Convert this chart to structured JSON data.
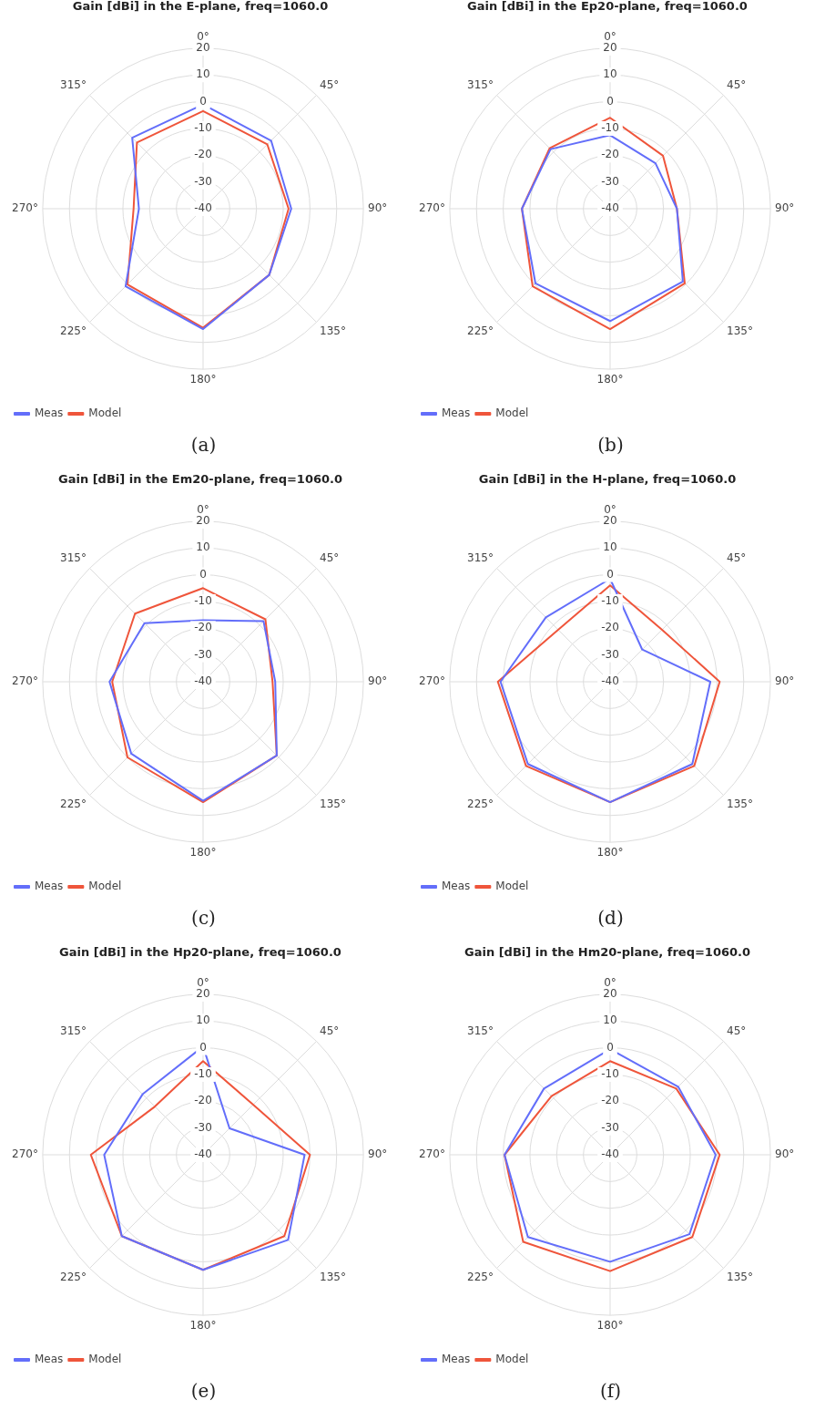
{
  "chart_data": [
    {
      "type": "radar",
      "title": "Gain [dBi] in the E-plane, freq=1060.0",
      "categories": [
        "0°",
        "45°",
        "90°",
        "135°",
        "180°",
        "225°",
        "270°",
        "315°"
      ],
      "series": [
        {
          "name": "Meas",
          "color": "#636efa",
          "values": [
            -1,
            -4,
            -7,
            -5,
            5,
            1,
            -16,
            -2.5
          ]
        },
        {
          "name": "Model",
          "color": "#ef553b",
          "values": [
            -3.5,
            -6,
            -8,
            -5,
            4.5,
            0,
            -14,
            -5
          ]
        }
      ],
      "ylim": [
        -40,
        20
      ],
      "yticks": [
        -40,
        -30,
        -20,
        -10,
        0,
        10,
        20
      ],
      "grid": true,
      "legend": "bottom left",
      "marker": "none",
      "line_style": "solid",
      "annotations": [
        "(a)"
      ]
    },
    {
      "type": "radar",
      "title": "Gain [dBi] in the Ep20-plane, freq=1060.0",
      "categories": [
        "0°",
        "45°",
        "90°",
        "135°",
        "180°",
        "225°",
        "270°",
        "315°"
      ],
      "series": [
        {
          "name": "Meas",
          "color": "#636efa",
          "values": [
            -12.5,
            -16,
            -15,
            -1.5,
            2,
            -0.5,
            -7,
            -8.5
          ]
        },
        {
          "name": "Model",
          "color": "#ef553b",
          "values": [
            -6,
            -12,
            -15,
            -0.5,
            5,
            1,
            -7,
            -8
          ]
        }
      ],
      "ylim": [
        -40,
        20
      ],
      "yticks": [
        -40,
        -30,
        -20,
        -10,
        0,
        10,
        20
      ],
      "grid": true,
      "legend": "bottom left",
      "marker": "none",
      "line_style": "solid",
      "annotations": [
        "(b)"
      ]
    },
    {
      "type": "radar",
      "title": "Gain [dBi] in the Em20-plane, freq=1060.0",
      "categories": [
        "0°",
        "45°",
        "90°",
        "135°",
        "180°",
        "225°",
        "270°",
        "315°"
      ],
      "series": [
        {
          "name": "Meas",
          "color": "#636efa",
          "values": [
            -17,
            -8,
            -13,
            -1,
            4.5,
            -2,
            -5,
            -9
          ]
        },
        {
          "name": "Model",
          "color": "#ef553b",
          "values": [
            -5,
            -7,
            -14,
            -1,
            5,
            0,
            -6,
            -4
          ]
        }
      ],
      "ylim": [
        -40,
        20
      ],
      "yticks": [
        -40,
        -30,
        -20,
        -10,
        0,
        10,
        20
      ],
      "grid": true,
      "legend": "bottom left",
      "marker": "none",
      "line_style": "solid",
      "annotations": [
        "(c)"
      ]
    },
    {
      "type": "radar",
      "title": "Gain [dBi] in the H-plane, freq=1060.0",
      "categories": [
        "0°",
        "45°",
        "90°",
        "135°",
        "180°",
        "225°",
        "270°",
        "315°"
      ],
      "series": [
        {
          "name": "Meas",
          "color": "#636efa",
          "values": [
            -1.5,
            -23,
            -2.5,
            3.5,
            5,
            3.5,
            1,
            -6
          ]
        },
        {
          "name": "Model",
          "color": "#ef553b",
          "values": [
            -4,
            -12.5,
            1,
            4.5,
            5,
            4.5,
            2,
            -12.5
          ]
        }
      ],
      "ylim": [
        -40,
        20
      ],
      "yticks": [
        -40,
        -30,
        -20,
        -10,
        0,
        10,
        20
      ],
      "grid": true,
      "legend": "bottom left",
      "marker": "none",
      "line_style": "solid",
      "annotations": [
        "(d)"
      ]
    },
    {
      "type": "radar",
      "title": "Gain [dBi] in the Hp20-plane, freq=1060.0",
      "categories": [
        "0°",
        "45°",
        "90°",
        "135°",
        "180°",
        "225°",
        "270°",
        "315°"
      ],
      "series": [
        {
          "name": "Meas",
          "color": "#636efa",
          "values": [
            0.5,
            -26,
            -2,
            5,
            3,
            3,
            -3,
            -8
          ]
        },
        {
          "name": "Model",
          "color": "#ef553b",
          "values": [
            -5,
            -13.5,
            0,
            3,
            3,
            3,
            2,
            -14.5
          ]
        }
      ],
      "ylim": [
        -40,
        20
      ],
      "yticks": [
        -40,
        -30,
        -20,
        -10,
        0,
        10,
        20
      ],
      "grid": true,
      "legend": "bottom left",
      "marker": "none",
      "line_style": "solid",
      "annotations": [
        "(e)"
      ]
    },
    {
      "type": "radar",
      "title": "Gain [dBi] in the Hm20-plane, freq=1060.0",
      "categories": [
        "0°",
        "45°",
        "90°",
        "135°",
        "180°",
        "225°",
        "270°",
        "315°"
      ],
      "series": [
        {
          "name": "Meas",
          "color": "#636efa",
          "values": [
            -0.5,
            -4,
            -0.5,
            2,
            0,
            3.5,
            -0.5,
            -5
          ]
        },
        {
          "name": "Model",
          "color": "#ef553b",
          "values": [
            -5,
            -5,
            1,
            3.5,
            3.5,
            6,
            -0.5,
            -9
          ]
        }
      ],
      "ylim": [
        -40,
        20
      ],
      "yticks": [
        -40,
        -30,
        -20,
        -10,
        0,
        10,
        20
      ],
      "grid": true,
      "legend": "bottom left",
      "marker": "none",
      "line_style": "solid",
      "annotations": [
        "(f)"
      ]
    }
  ]
}
